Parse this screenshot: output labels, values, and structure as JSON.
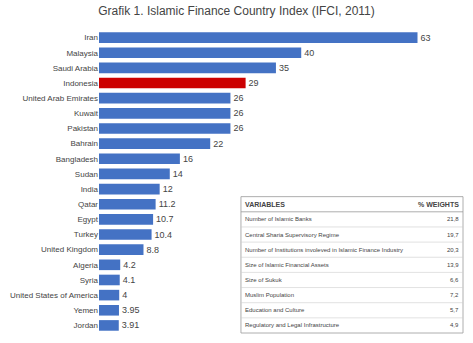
{
  "chart_data": {
    "type": "bar",
    "orientation": "horizontal",
    "title": "Grafik 1. Islamic Finance Country Index (IFCI, 2011)",
    "categories": [
      "Jordan",
      "Yemen",
      "United States of America",
      "Syria",
      "Algeria",
      "United Kingdom",
      "Turkey",
      "Egypt",
      "Qatar",
      "India",
      "Sudan",
      "Bangladesh",
      "Bahrain",
      "Pakistan",
      "Kuwait",
      "United Arab Emirates",
      "Indonesia",
      "Saudi Arabia",
      "Malaysia",
      "Iran"
    ],
    "values": [
      3.91,
      3.95,
      4,
      4.1,
      4.2,
      8.8,
      10.4,
      10.7,
      11.2,
      12,
      14,
      16,
      22,
      26,
      26,
      26,
      29,
      35,
      40,
      63
    ],
    "colors": [
      "#4472c4",
      "#4472c4",
      "#4472c4",
      "#4472c4",
      "#4472c4",
      "#4472c4",
      "#4472c4",
      "#4472c4",
      "#4472c4",
      "#4472c4",
      "#4472c4",
      "#4472c4",
      "#4472c4",
      "#4472c4",
      "#4472c4",
      "#4472c4",
      "#cc0000",
      "#4472c4",
      "#4472c4",
      "#4472c4"
    ],
    "xlim": [
      0,
      72
    ],
    "data_labels": true,
    "tick_labels": "y",
    "grid": false,
    "table": {
      "columns": [
        "VARIABLES",
        "% WEIGHTS"
      ],
      "rows": [
        [
          "Number of Islamic Banks",
          "21,8"
        ],
        [
          "Central Sharia Supervisory Regime",
          "19,7"
        ],
        [
          "Number of Institutions involeved in Islamic Finance Industry",
          "20,3"
        ],
        [
          "Size of Islamic Financial Assets",
          "13,9"
        ],
        [
          "Size of Sukuk",
          "6,6"
        ],
        [
          "Muslim Population",
          "7,2"
        ],
        [
          "Education and Culture",
          "5,7"
        ],
        [
          "Regulatory and Legal Infrastructure",
          "4,9"
        ]
      ]
    }
  }
}
